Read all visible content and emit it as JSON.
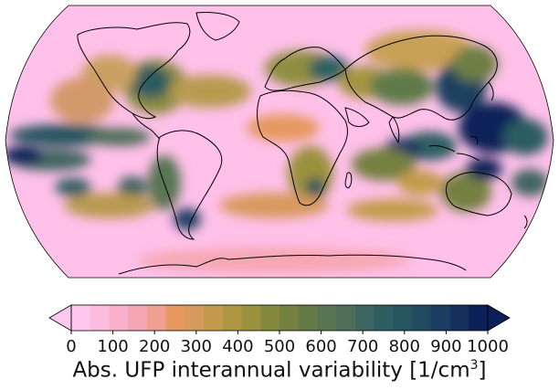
{
  "map": {
    "projection": "robinson",
    "background_color": "#ffc0e9",
    "coastline_color": "#000000"
  },
  "colorbar": {
    "label_prefix": "Abs. UFP interannual variability [1/cm",
    "label_exponent": "3",
    "label_suffix": "]",
    "ticks": [
      "0",
      "100",
      "200",
      "300",
      "400",
      "500",
      "600",
      "700",
      "800",
      "900",
      "1000"
    ],
    "extend": "both",
    "colors": [
      "#ffc8ee",
      "#fcbce0",
      "#f9b1cb",
      "#f5a7b3",
      "#f0a090",
      "#e6985e",
      "#d79a5e",
      "#c49b4c",
      "#ad9742",
      "#9a913e",
      "#85893e",
      "#748040",
      "#647a46",
      "#587552",
      "#4f6e5a",
      "#3f6560",
      "#2f5e62",
      "#25555f",
      "#1f4a60",
      "#1b3e60",
      "#172f5d",
      "#0c2058"
    ],
    "under_color": "#ffc8ee",
    "over_color": "#0c2058"
  }
}
